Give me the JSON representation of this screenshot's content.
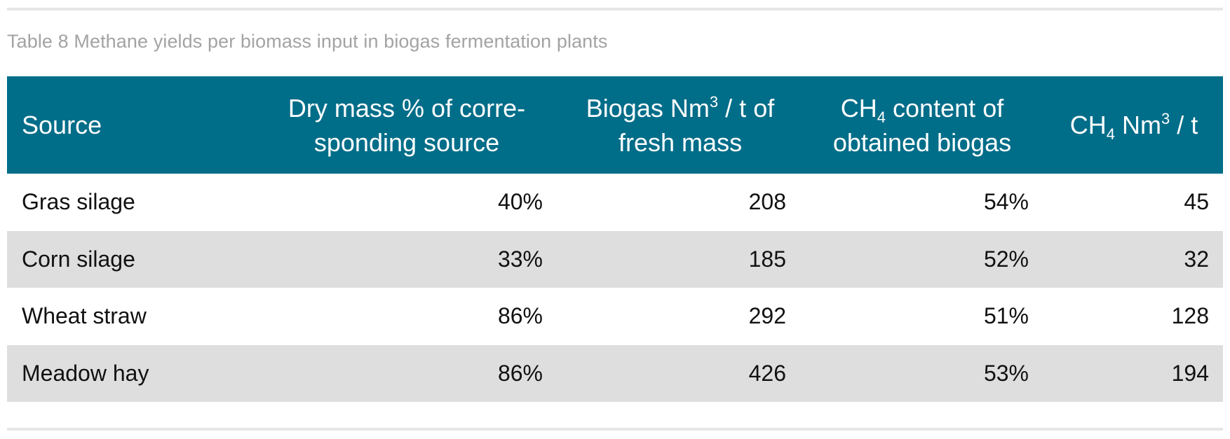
{
  "caption": "Table 8 Methane yields per biomass input in biogas fermentation plants",
  "header": {
    "source": "Source",
    "dry_mass": "Dry mass % of corre-sponding source",
    "biogas": "Biogas Nm³ / t of fresh mass",
    "ch4_content": "CH₄ content of obtained biogas",
    "ch4_yield": "CH₄ Nm³ / t"
  },
  "rows": [
    {
      "source": "Gras silage",
      "dry_mass": "40%",
      "biogas": "208",
      "ch4_content": "54%",
      "ch4_yield": "45"
    },
    {
      "source": "Corn silage",
      "dry_mass": "33%",
      "biogas": "185",
      "ch4_content": "52%",
      "ch4_yield": "32"
    },
    {
      "source": "Wheat straw",
      "dry_mass": "86%",
      "biogas": "292",
      "ch4_content": "51%",
      "ch4_yield": "128"
    },
    {
      "source": "Meadow hay",
      "dry_mass": "86%",
      "biogas": "426",
      "ch4_content": "53%",
      "ch4_yield": "194"
    }
  ],
  "colors": {
    "header_bg": "#006d89",
    "shade_bg": "#dededf",
    "caption_text": "#a3a3a3"
  }
}
